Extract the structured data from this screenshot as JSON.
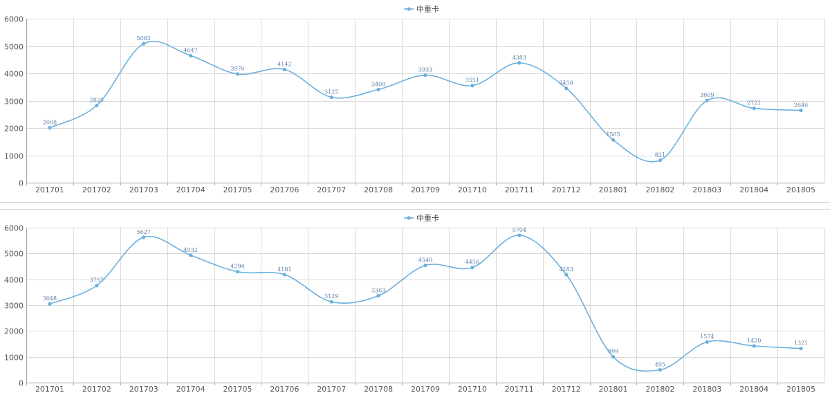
{
  "chart_data": [
    {
      "type": "line",
      "categories": [
        "201701",
        "201702",
        "201703",
        "201704",
        "201705",
        "201706",
        "201707",
        "201708",
        "201709",
        "201710",
        "201711",
        "201712",
        "201801",
        "201802",
        "201803",
        "201804",
        "201805"
      ],
      "series": [
        {
          "name": "中重卡",
          "values": [
            2008,
            2825,
            5083,
            4647,
            3976,
            4142,
            3125,
            3408,
            3933,
            3551,
            4383,
            3456,
            1565,
            821,
            3009,
            2721,
            2646
          ]
        }
      ],
      "data_labels": [
        "2008",
        "2825",
        "5083",
        "4647",
        "3976",
        "4142",
        "3125",
        "3408",
        "3933",
        "3551",
        "4383",
        "3456",
        "1565",
        "821",
        "3009",
        "2721",
        "2646"
      ],
      "ylim": [
        0,
        6000
      ],
      "yticks": [
        "0",
        "1000",
        "2000",
        "3000",
        "4000",
        "5000",
        "6000"
      ],
      "grid": true,
      "legend_position": "top-center",
      "line_color": "#6ab0de"
    },
    {
      "type": "line",
      "categories": [
        "201701",
        "201702",
        "201703",
        "201704",
        "201705",
        "201706",
        "201707",
        "201708",
        "201709",
        "201710",
        "201711",
        "201712",
        "201801",
        "201802",
        "201803",
        "201804",
        "201805"
      ],
      "series": [
        {
          "name": "中重卡",
          "values": [
            3048,
            3757,
            5627,
            4932,
            4294,
            4181,
            3129,
            3363,
            4540,
            4456,
            5704,
            4183,
            999,
            495,
            1574,
            1420,
            1321
          ]
        }
      ],
      "data_labels": [
        "3048",
        "3757",
        "5627",
        "4932",
        "4294",
        "4181",
        "3129",
        "3363",
        "4540",
        "4456",
        "5704",
        "4183",
        "999",
        "495",
        "1574",
        "1420",
        "1321"
      ],
      "ylim": [
        0,
        6000
      ],
      "yticks": [
        "0",
        "1000",
        "2000",
        "3000",
        "4000",
        "5000",
        "6000"
      ],
      "grid": true,
      "legend_position": "top-center",
      "line_color": "#6ab0de"
    }
  ]
}
